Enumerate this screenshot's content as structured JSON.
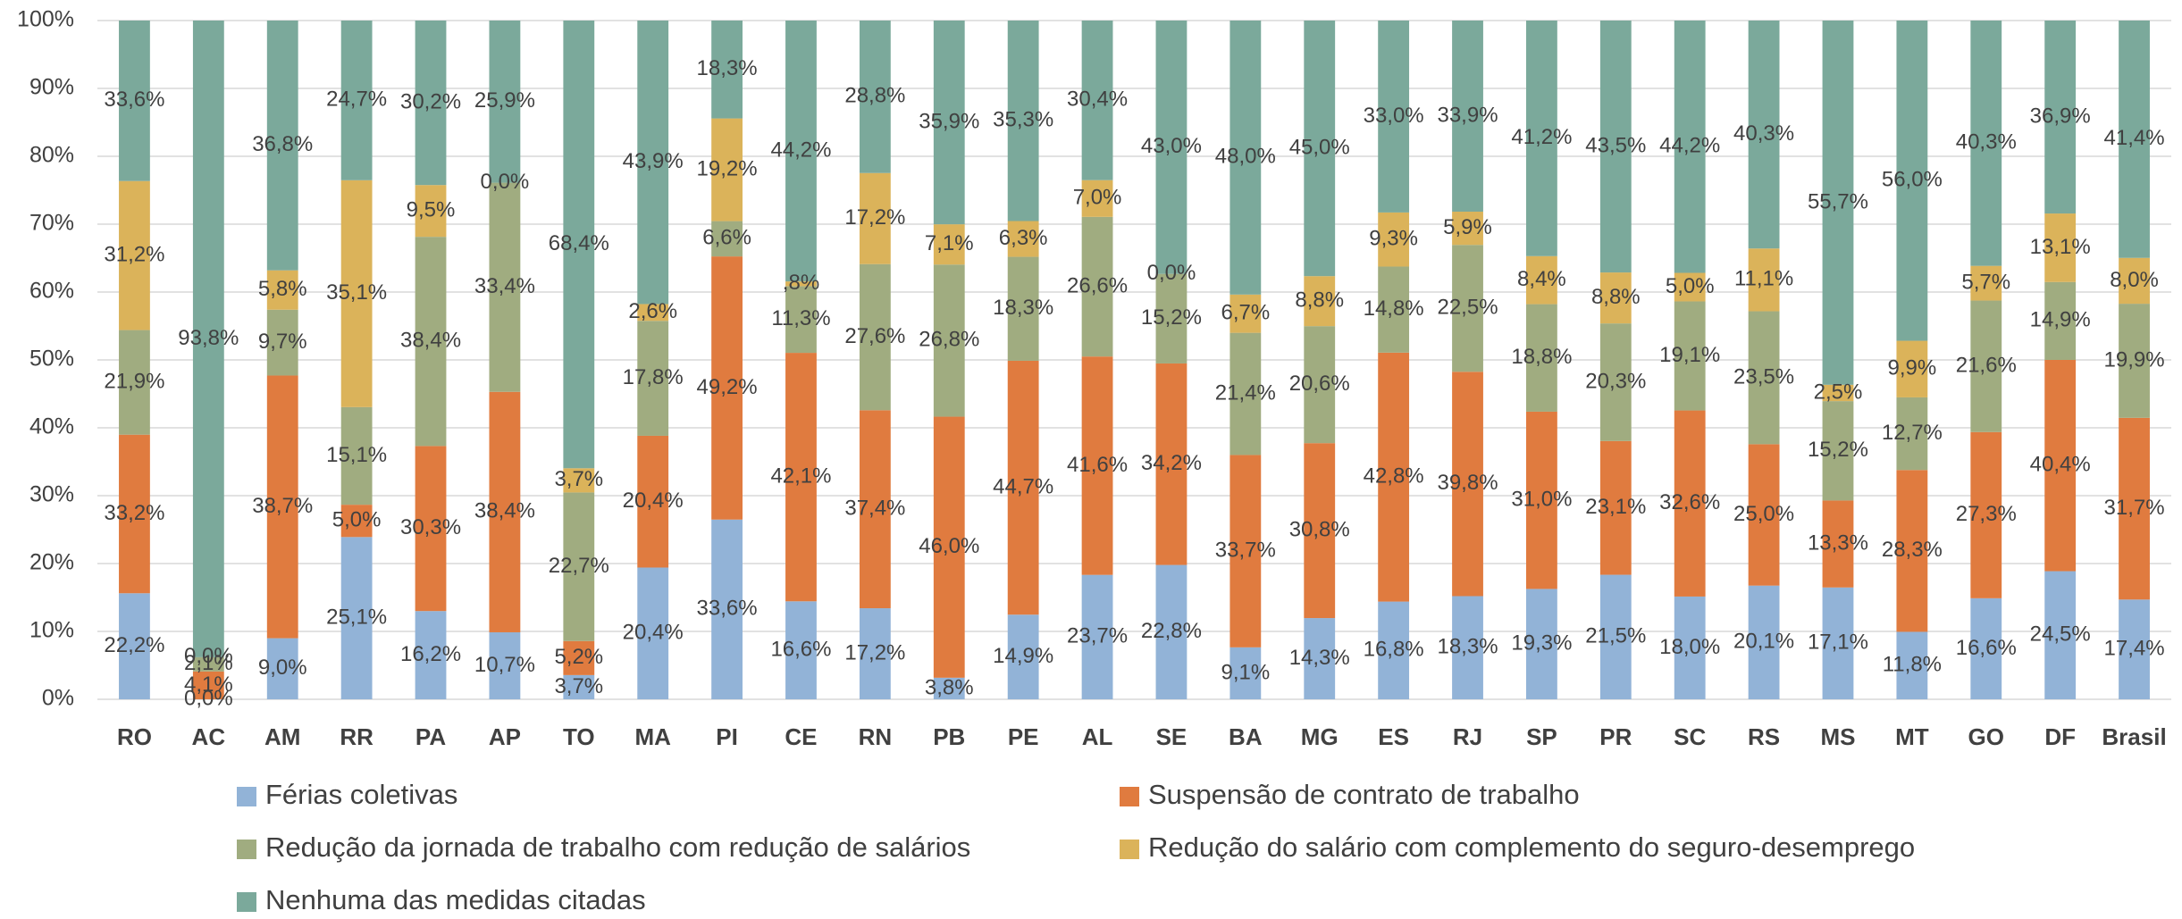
{
  "chart_data": {
    "type": "bar",
    "stacking": "percent",
    "grid": true,
    "legend": "bottom",
    "categories": [
      "RO",
      "AC",
      "AM",
      "RR",
      "PA",
      "AP",
      "TO",
      "MA",
      "PI",
      "CE",
      "RN",
      "PB",
      "PE",
      "AL",
      "SE",
      "BA",
      "MG",
      "ES",
      "RJ",
      "SP",
      "PR",
      "SC",
      "RS",
      "MS",
      "MT",
      "GO",
      "DF",
      "Brasil"
    ],
    "ylim": [
      0,
      100
    ],
    "yticks": [
      {
        "value": 0,
        "label": "0%"
      },
      {
        "value": 10,
        "label": "10%"
      },
      {
        "value": 20,
        "label": "20%"
      },
      {
        "value": 30,
        "label": "30%"
      },
      {
        "value": 40,
        "label": "40%"
      },
      {
        "value": 50,
        "label": "50%"
      },
      {
        "value": 60,
        "label": "60%"
      },
      {
        "value": 70,
        "label": "70%"
      },
      {
        "value": 80,
        "label": "80%"
      },
      {
        "value": 90,
        "label": "90%"
      },
      {
        "value": 100,
        "label": "100%"
      }
    ],
    "series": [
      {
        "name": "Férias coletivas",
        "color": "#92b3d7",
        "values": [
          22.2,
          0.0,
          9.0,
          25.1,
          16.2,
          10.7,
          3.7,
          20.4,
          33.6,
          16.6,
          17.2,
          3.8,
          14.9,
          23.7,
          22.8,
          9.1,
          14.3,
          16.8,
          18.3,
          19.3,
          21.5,
          18.0,
          20.1,
          17.1,
          11.8,
          16.6,
          24.5,
          17.4
        ],
        "value_labels": [
          "22,2%",
          "0,0%",
          "9,0%",
          "25,1%",
          "16,2%",
          "10,7%",
          "3,7%",
          "20,4%",
          "33,6%",
          "16,6%",
          "17,2%",
          "3,8%",
          "14,9%",
          "23,7%",
          "22,8%",
          "9,1%",
          "14,3%",
          "16,8%",
          "18,3%",
          "19,3%",
          "21,5%",
          "18,0%",
          "20,1%",
          "17,1%",
          "11,8%",
          "16,6%",
          "24,5%",
          "17,4%"
        ]
      },
      {
        "name": "Suspensão de contrato de trabalho",
        "color": "#e07b3f",
        "values": [
          33.2,
          4.1,
          38.7,
          5.0,
          30.3,
          38.4,
          5.2,
          20.4,
          49.2,
          42.1,
          37.4,
          46.0,
          44.7,
          41.6,
          34.2,
          33.7,
          30.8,
          42.8,
          39.8,
          31.0,
          23.1,
          32.6,
          25.0,
          13.3,
          28.3,
          27.3,
          40.4,
          31.7
        ],
        "value_labels": [
          "33,2%",
          "4,1%",
          "38,7%",
          "5,0%",
          "30,3%",
          "38,4%",
          "5,2%",
          "20,4%",
          "49,2%",
          "42,1%",
          "37,4%",
          "46,0%",
          "44,7%",
          "41,6%",
          "34,2%",
          "33,7%",
          "30,8%",
          "42,8%",
          "39,8%",
          "31,0%",
          "23,1%",
          "32,6%",
          "25,0%",
          "13,3%",
          "28,3%",
          "27,3%",
          "40,4%",
          "31,7%"
        ]
      },
      {
        "name": "Redução da jornada de trabalho com redução de salários",
        "color": "#a0ac80",
        "values": [
          21.9,
          2.1,
          9.7,
          15.1,
          38.4,
          33.4,
          22.7,
          17.8,
          6.6,
          11.3,
          27.6,
          26.8,
          18.3,
          26.6,
          15.2,
          21.4,
          20.6,
          14.8,
          22.5,
          18.8,
          20.3,
          19.1,
          23.5,
          15.2,
          12.7,
          21.6,
          14.9,
          19.9
        ],
        "value_labels": [
          "21,9%",
          "2,1%",
          "9,7%",
          "15,1%",
          "38,4%",
          "33,4%",
          "22,7%",
          "17,8%",
          "6,6%",
          "11,3%",
          "27,6%",
          "26,8%",
          "18,3%",
          "26,6%",
          "15,2%",
          "21,4%",
          "20,6%",
          "14,8%",
          "22,5%",
          "18,8%",
          "20,3%",
          "19,1%",
          "23,5%",
          "15,2%",
          "12,7%",
          "21,6%",
          "14,9%",
          "19,9%"
        ]
      },
      {
        "name": "Redução do salário com complemento do seguro-desemprego",
        "color": "#dbb35a",
        "values": [
          31.2,
          0.0,
          5.8,
          35.1,
          9.5,
          0.0,
          3.7,
          2.6,
          19.2,
          0.8,
          17.2,
          7.1,
          6.3,
          7.0,
          0.0,
          6.7,
          8.8,
          9.3,
          5.9,
          8.4,
          8.8,
          5.0,
          11.1,
          2.5,
          9.9,
          5.7,
          13.1,
          8.0
        ],
        "value_labels": [
          "31,2%",
          "0,0%",
          "5,8%",
          "35,1%",
          "9,5%",
          "0,0%",
          "3,7%",
          "2,6%",
          "19,2%",
          ",8%",
          "17,2%",
          "7,1%",
          "6,3%",
          "7,0%",
          "0,0%",
          "6,7%",
          "8,8%",
          "9,3%",
          "5,9%",
          "8,4%",
          "8,8%",
          "5,0%",
          "11,1%",
          "2,5%",
          "9,9%",
          "5,7%",
          "13,1%",
          "8,0%"
        ]
      },
      {
        "name": "Nenhuma das medidas citadas",
        "color": "#7ba99b",
        "values": [
          33.6,
          93.8,
          36.8,
          24.7,
          30.2,
          25.9,
          68.4,
          43.9,
          18.3,
          44.2,
          28.8,
          35.9,
          35.3,
          30.4,
          43.0,
          48.0,
          45.0,
          33.0,
          33.9,
          41.2,
          43.5,
          44.2,
          40.3,
          55.7,
          56.0,
          40.3,
          36.9,
          41.4
        ],
        "value_labels": [
          "33,6%",
          "93,8%",
          "36,8%",
          "24,7%",
          "30,2%",
          "25,9%",
          "68,4%",
          "43,9%",
          "18,3%",
          "44,2%",
          "28,8%",
          "35,9%",
          "35,3%",
          "30,4%",
          "43,0%",
          "48,0%",
          "45,0%",
          "33,0%",
          "33,9%",
          "41,2%",
          "43,5%",
          "44,2%",
          "40,3%",
          "55,7%",
          "56,0%",
          "40,3%",
          "36,9%",
          "41,4%"
        ]
      }
    ]
  }
}
